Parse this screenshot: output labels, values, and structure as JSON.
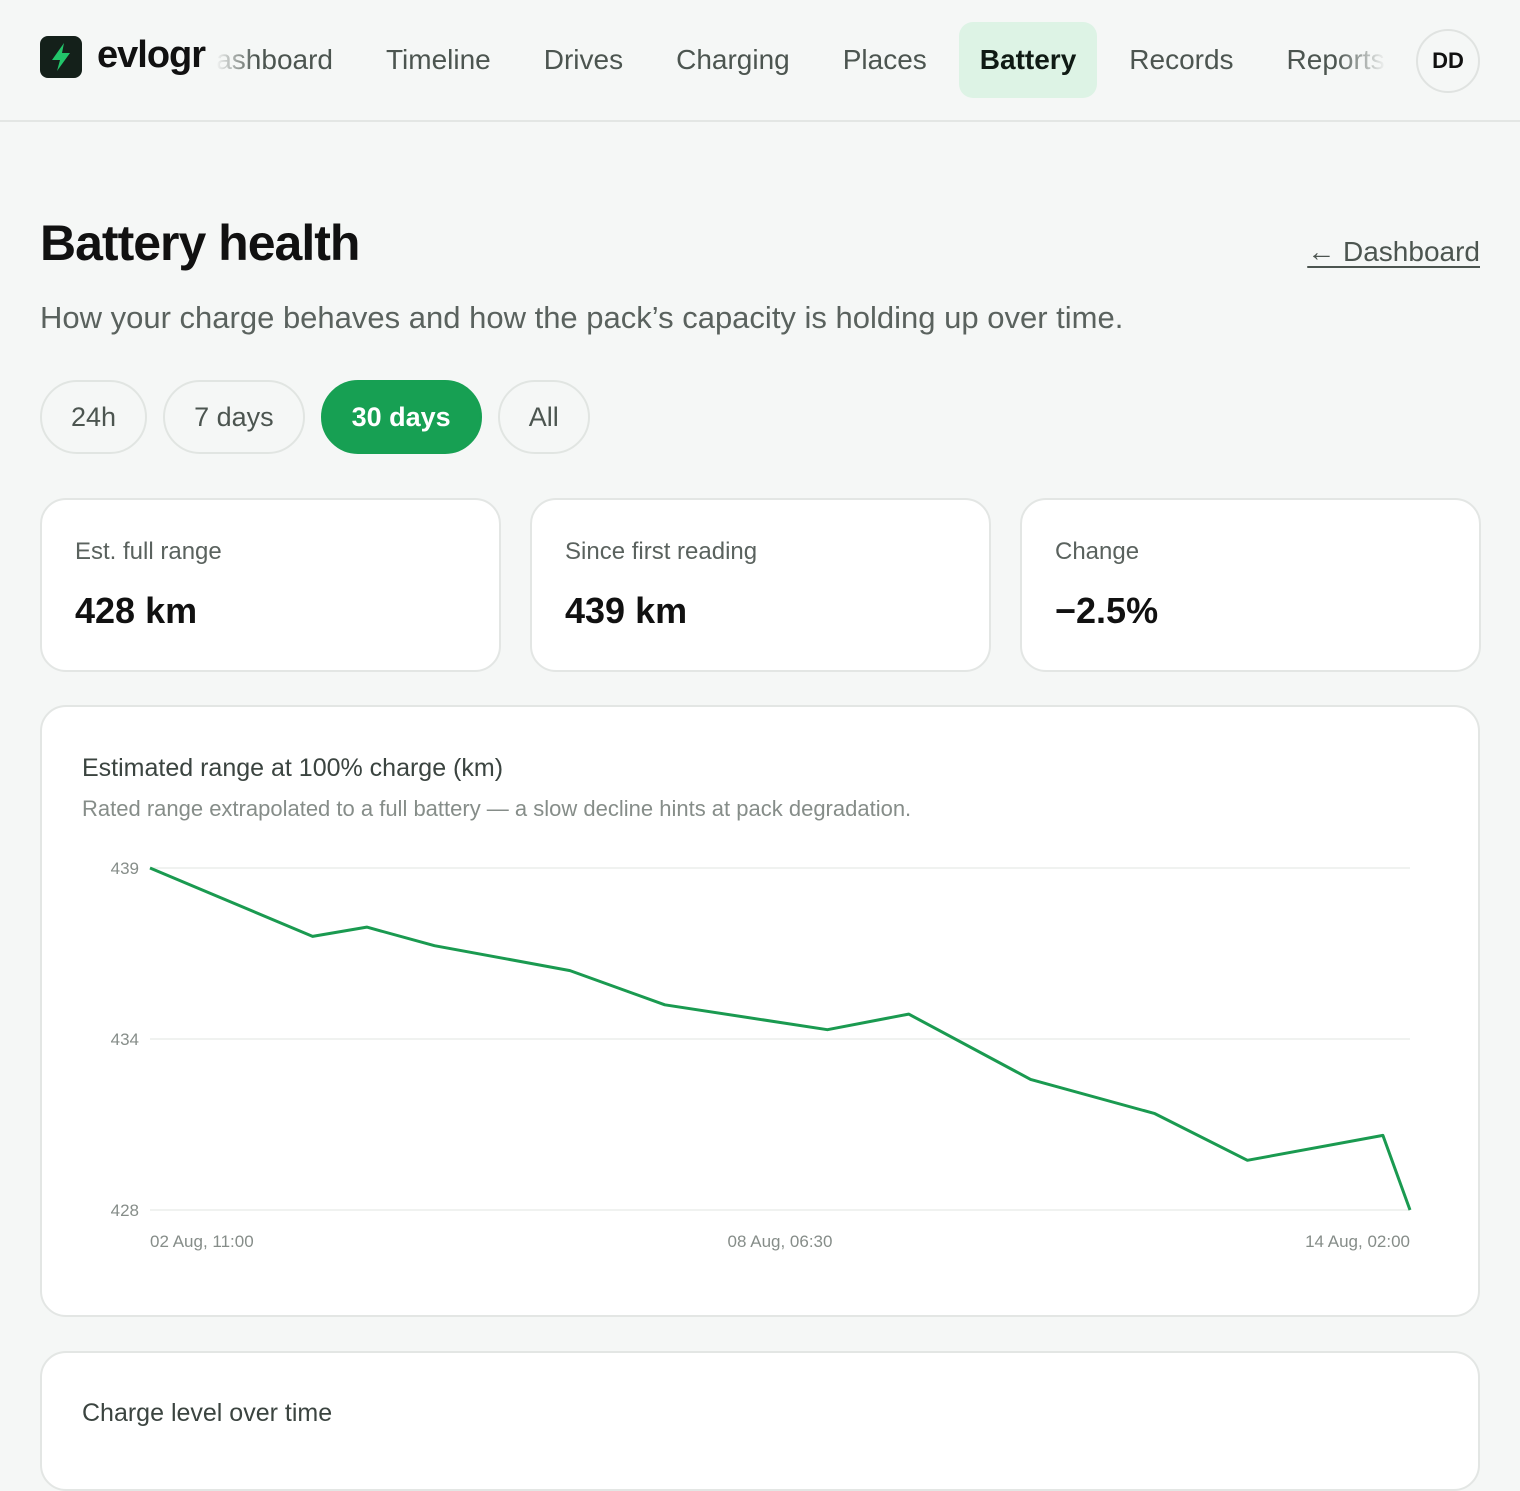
{
  "nav": {
    "brand": "evlogr",
    "links": [
      "Dashboard",
      "Timeline",
      "Drives",
      "Charging",
      "Places",
      "Battery",
      "Records",
      "Reports"
    ],
    "active": "Battery",
    "avatar": "DD"
  },
  "header": {
    "title": "Battery health",
    "back": "← Dashboard",
    "subtitle": "How your charge behaves and how the pack’s capacity is holding up over time."
  },
  "filters": {
    "options": [
      "24h",
      "7 days",
      "30 days",
      "All"
    ],
    "selected": "30 days"
  },
  "stats": [
    {
      "label": "Est. full range",
      "value": "428 km"
    },
    {
      "label": "Since first reading",
      "value": "439 km"
    },
    {
      "label": "Change",
      "value": "−2.5%"
    }
  ],
  "chart_data": {
    "type": "line",
    "title": "Estimated range at 100% charge (km)",
    "subtitle": "Rated range extrapolated to a full battery — a slow decline hints at pack degradation.",
    "x": [
      "02 Aug, 11:00",
      "03 Aug, 23:00",
      "04 Aug, 11:00",
      "05 Aug, 02:00",
      "06 Aug, 08:00",
      "07 Aug, 05:00",
      "08 Aug, 17:00",
      "09 Aug, 11:00",
      "10 Aug, 14:00",
      "11 Aug, 17:30",
      "12 Aug, 14:00",
      "13 Aug, 20:00",
      "14 Aug, 02:00"
    ],
    "values": [
      439,
      436.8,
      437.1,
      436.5,
      435.7,
      434.6,
      433.8,
      434.3,
      432.2,
      431.1,
      429.6,
      430.4,
      428
    ],
    "color": "#1a9a50",
    "xlim": [
      "02 Aug, 11:00",
      "14 Aug, 02:00"
    ],
    "xticks": [
      "02 Aug, 11:00",
      "08 Aug, 06:30",
      "14 Aug, 02:00"
    ],
    "ylim": [
      428,
      439
    ],
    "yticks": [
      428,
      {
        "value": 433.5,
        "label": "434"
      },
      439
    ],
    "grid": true
  },
  "next_card": {
    "title": "Charge level over time"
  }
}
